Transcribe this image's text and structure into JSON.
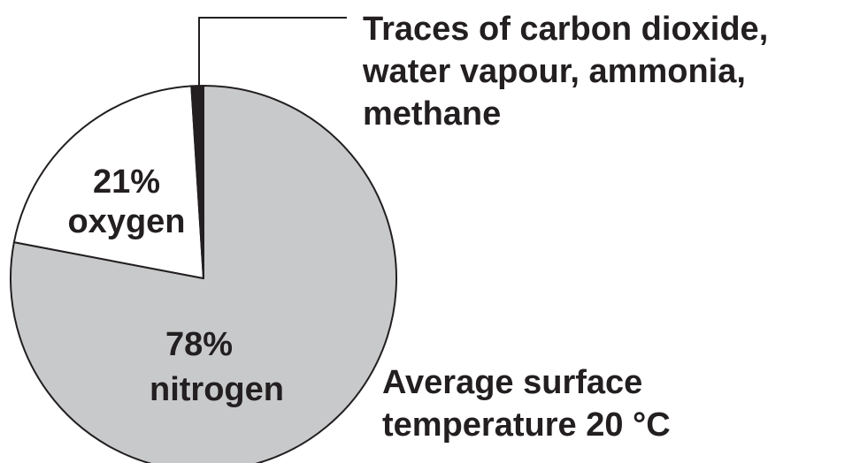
{
  "chart_data": {
    "type": "pie",
    "categories": [
      "nitrogen",
      "oxygen",
      "Traces of carbon dioxide,\nwater vapour, ammonia,\nmethane"
    ],
    "values": [
      78,
      21,
      1
    ],
    "value_labels": [
      "78%",
      "21%",
      null
    ],
    "colors": [
      "#c8c9cb",
      "#ffffff",
      "#231f20"
    ],
    "annotation": "Average surface\ntemperature 20 °C"
  }
}
